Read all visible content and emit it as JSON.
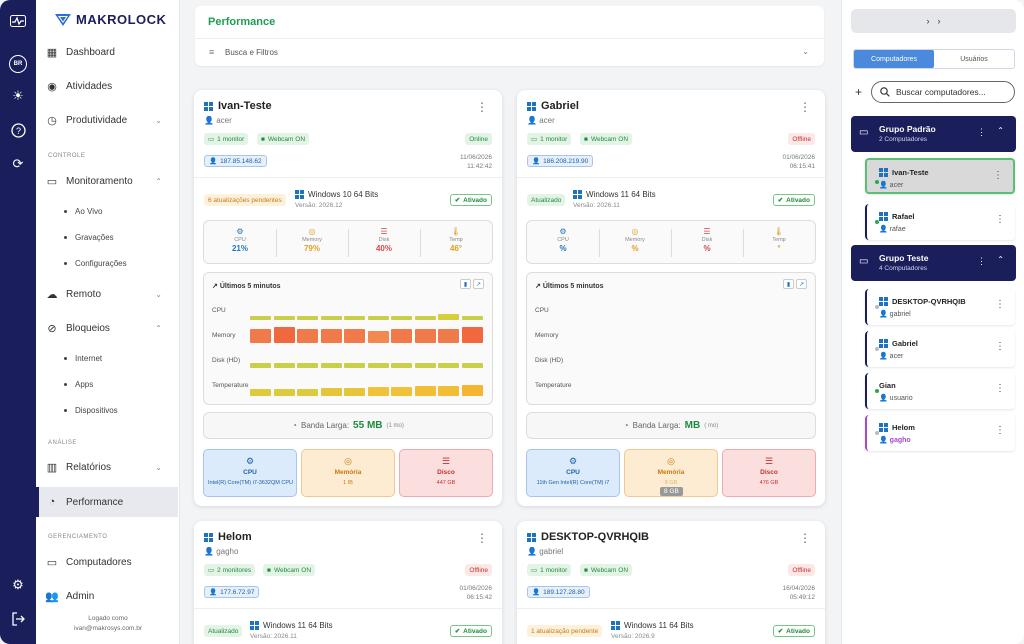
{
  "app": {
    "name": "MAKROLOCK"
  },
  "rail": {
    "lang": "BR"
  },
  "sidebar": {
    "items": [
      {
        "label": "Dashboard"
      },
      {
        "label": "Atividades"
      },
      {
        "label": "Produtividade"
      },
      {
        "label": "Monitoramento"
      },
      {
        "label": "Ao Vivo"
      },
      {
        "label": "Gravações"
      },
      {
        "label": "Configurações"
      },
      {
        "label": "Remoto"
      },
      {
        "label": "Bloqueios"
      },
      {
        "label": "Internet"
      },
      {
        "label": "Apps"
      },
      {
        "label": "Dispositivos"
      },
      {
        "label": "Relatórios"
      },
      {
        "label": "Performance"
      },
      {
        "label": "Computadores"
      },
      {
        "label": "Admin"
      }
    ],
    "sections": {
      "controle": "CONTROLE",
      "analise": "ANÁLISE",
      "gerenciamento": "GERENCIAMENTO"
    },
    "logged_label": "Logado como",
    "logged_email": "ivan@makrosys.com.br"
  },
  "header": {
    "title": "Performance",
    "filter_label": "Busca e Filtros"
  },
  "common": {
    "history_title": "Últimos 5 minutos",
    "rows": [
      "CPU",
      "Memory",
      "Disk (HD)",
      "Temperature"
    ],
    "metric_labels": [
      "CPU",
      "Memory",
      "Disk",
      "Temp"
    ],
    "banda_label": "Banda Larga:",
    "hw_labels": [
      "CPU",
      "Memória",
      "Disco"
    ]
  },
  "cards": [
    {
      "name": "Ivan-Teste",
      "user": "acer",
      "monitors": "1 monitor",
      "webcam": "Webcam ON",
      "status": "Online",
      "ip": "187.85.148.62",
      "date": "11/06/2026",
      "time": "11:42:42",
      "update": "6 atualizações pendentes",
      "os": "Windows 10 64 Bits",
      "version": "Versão: 2026.12",
      "activated": "Ativado",
      "metrics": [
        "21%",
        "79%",
        "40%",
        "46°"
      ],
      "banda_value": "55 MB",
      "banda_unit": "(1 mo)",
      "hw": [
        "Intel(R) Core(TM) i7-3632QM CPU",
        "1 IB",
        "447 GB"
      ]
    },
    {
      "name": "Gabriel",
      "user": "acer",
      "monitors": "1 monitor",
      "webcam": "Webcam ON",
      "status": "Offline",
      "ip": "186.208.219.90",
      "date": "01/06/2026",
      "time": "06:15:41",
      "update": "Atualizado",
      "os": "Windows 11 64 Bits",
      "version": "Versão: 2026.11",
      "activated": "Ativado",
      "metrics": [
        "%",
        "%",
        "%",
        "°"
      ],
      "banda_value": "MB",
      "banda_unit": "( mo)",
      "hw": [
        "11th Gen Intel(R) Core(TM) i7",
        "8 GB",
        "476 GB"
      ],
      "tooltip": "8 GB"
    },
    {
      "name": "Helom",
      "user": "gagho",
      "monitors": "2 monitores",
      "webcam": "Webcam ON",
      "status": "Offline",
      "ip": "177.6.72.97",
      "date": "01/06/2026",
      "time": "06:15:42",
      "update": "Atualizado",
      "os": "Windows 11 64 Bits",
      "version": "Versão: 2026.11",
      "activated": "Ativado"
    },
    {
      "name": "DESKTOP-QVRHQIB",
      "user": "gabriel",
      "monitors": "1 monitor",
      "webcam": "Webcam ON",
      "status": "Offline",
      "ip": "189.127.28.80",
      "date": "16/04/2026",
      "time": "05:49:12",
      "update": "1 atualização pendente",
      "os": "Windows 11 64 Bits",
      "version": "Versão: 2026.9",
      "activated": "Ativado"
    }
  ],
  "right": {
    "tabs": [
      "Computadores",
      "Usuários"
    ],
    "search_placeholder": "Buscar computadores...",
    "groups": [
      {
        "name": "Grupo Padrão",
        "count": "2 Computadores",
        "computers": [
          {
            "name": "Ivan-Teste",
            "user": "acer"
          },
          {
            "name": "Rafael",
            "user": "rafae"
          }
        ]
      },
      {
        "name": "Grupo Teste",
        "count": "4 Computadores",
        "computers": [
          {
            "name": "DESKTOP-QVRHQIB",
            "user": "gabriel"
          },
          {
            "name": "Gabriel",
            "user": "acer"
          },
          {
            "name": "Gian",
            "user": "usuario"
          },
          {
            "name": "Helom",
            "user": "gagho"
          }
        ]
      }
    ]
  }
}
